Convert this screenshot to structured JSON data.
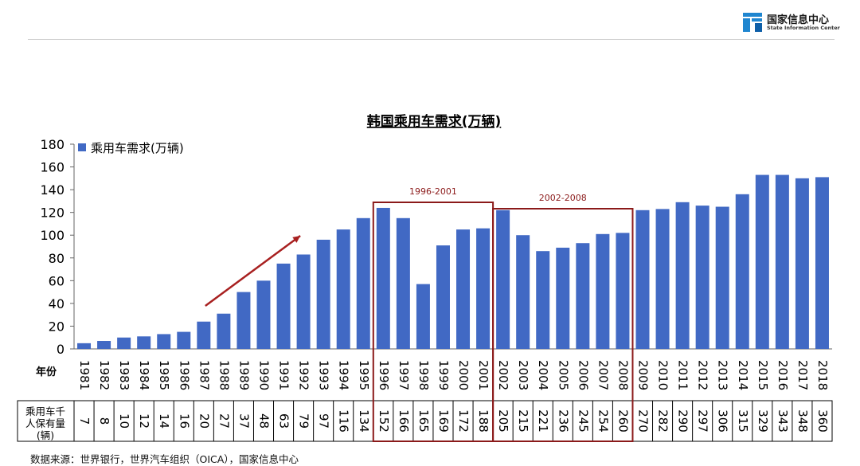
{
  "header": {
    "logo_cn": "国家信息中心",
    "logo_en": "State Information Center"
  },
  "source": "数据来源：世界银行，世界汽车组织（OICA），国家信息中心",
  "colors": {
    "bar": "#4169C4",
    "highlight": "#8B1A1A",
    "arrow": "#A82020",
    "logo_blue": "#1F86D0"
  },
  "chart_data": {
    "type": "bar",
    "title": "韩国乘用车需求(万辆)",
    "legend": [
      "乘用车需求(万辆)"
    ],
    "legend_position": "top-left",
    "ylim": [
      0,
      180
    ],
    "yticks": [
      0,
      20,
      40,
      60,
      80,
      100,
      120,
      140,
      160,
      180
    ],
    "category_header": "年份",
    "categories": [
      "1981",
      "1982",
      "1983",
      "1984",
      "1985",
      "1986",
      "1987",
      "1988",
      "1989",
      "1990",
      "1991",
      "1992",
      "1993",
      "1994",
      "1995",
      "1996",
      "1997",
      "1998",
      "1999",
      "2000",
      "2001",
      "2002",
      "2003",
      "2004",
      "2005",
      "2006",
      "2007",
      "2008",
      "2009",
      "2010",
      "2011",
      "2012",
      "2013",
      "2014",
      "2015",
      "2016",
      "2017",
      "2018"
    ],
    "series": [
      {
        "name": "乘用车需求(万辆)",
        "values": [
          5,
          7,
          10,
          11,
          13,
          15,
          24,
          31,
          50,
          60,
          75,
          83,
          96,
          105,
          115,
          124,
          115,
          57,
          91,
          105,
          106,
          122,
          100,
          86,
          89,
          93,
          101,
          102,
          122,
          123,
          129,
          126,
          125,
          136,
          153,
          153,
          150,
          151
        ]
      }
    ],
    "table": {
      "row_label": "乘用车千人保有量(辆)",
      "values": [
        "7",
        "8",
        "10",
        "12",
        "14",
        "16",
        "20",
        "27",
        "37",
        "48",
        "63",
        "79",
        "97",
        "116",
        "134",
        "152",
        "166",
        "165",
        "169",
        "172",
        "188",
        "205",
        "215",
        "221",
        "236",
        "245",
        "254",
        "260",
        "270",
        "282",
        "290",
        "297",
        "306",
        "315",
        "329",
        "343",
        "348",
        "360"
      ]
    },
    "annotations": [
      {
        "label": "1996-2001",
        "from": "1996",
        "to": "2001"
      },
      {
        "label": "2002-2008",
        "from": "2002",
        "to": "2008"
      }
    ],
    "trend_arrow": {
      "from": "1987",
      "to": "1992"
    },
    "grid": false
  }
}
